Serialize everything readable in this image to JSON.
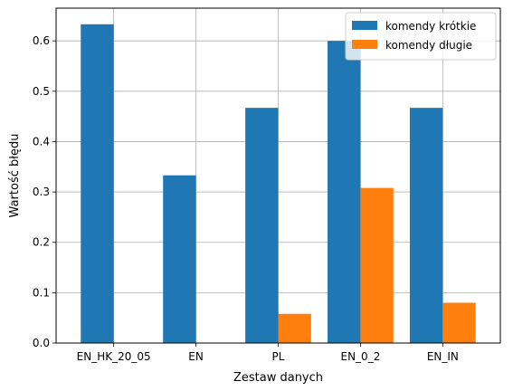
{
  "chart_data": {
    "type": "bar",
    "categories": [
      "EN_HK_20_05",
      "EN",
      "PL",
      "EN_0_2",
      "EN_IN"
    ],
    "series": [
      {
        "name": "komendy krótkie",
        "color": "#1f77b4",
        "values": [
          0.633,
          0.333,
          0.467,
          0.6,
          0.467
        ]
      },
      {
        "name": "komendy długie",
        "color": "#ff7f0e",
        "values": [
          0.0,
          0.0,
          0.058,
          0.308,
          0.08
        ]
      }
    ],
    "xlabel": "Zestaw danych",
    "ylabel": "Wartość błędu",
    "ylim": [
      0,
      0.665
    ],
    "yticks": [
      0.0,
      0.1,
      0.2,
      0.3,
      0.4,
      0.5,
      0.6
    ],
    "ytick_labels": [
      "0.0",
      "0.1",
      "0.2",
      "0.3",
      "0.4",
      "0.5",
      "0.6"
    ],
    "grid": true,
    "legend_position": "top-right"
  }
}
